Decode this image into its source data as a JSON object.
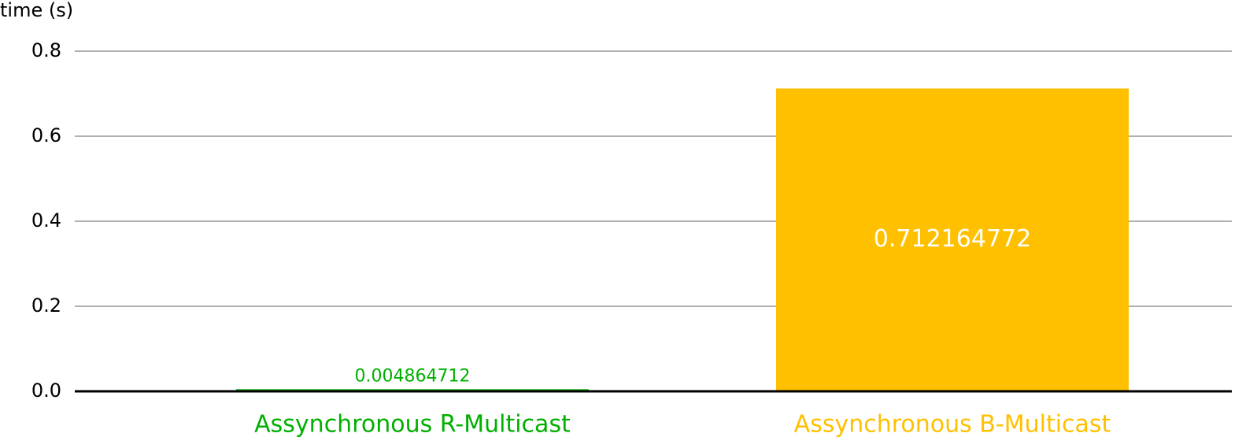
{
  "chart_data": {
    "type": "bar",
    "y_axis_label": "time (s)",
    "categories": [
      "Assynchronous R-Multicast",
      "Assynchronous B-Multicast"
    ],
    "values": [
      0.004864712,
      0.712164772
    ],
    "colors": [
      "#00b000",
      "#ffc000"
    ],
    "ylim": [
      0,
      0.8
    ],
    "yticks": [
      {
        "value": 0,
        "label": "0.0"
      },
      0.2,
      0.4,
      0.6,
      0.8
    ],
    "grid": true
  }
}
